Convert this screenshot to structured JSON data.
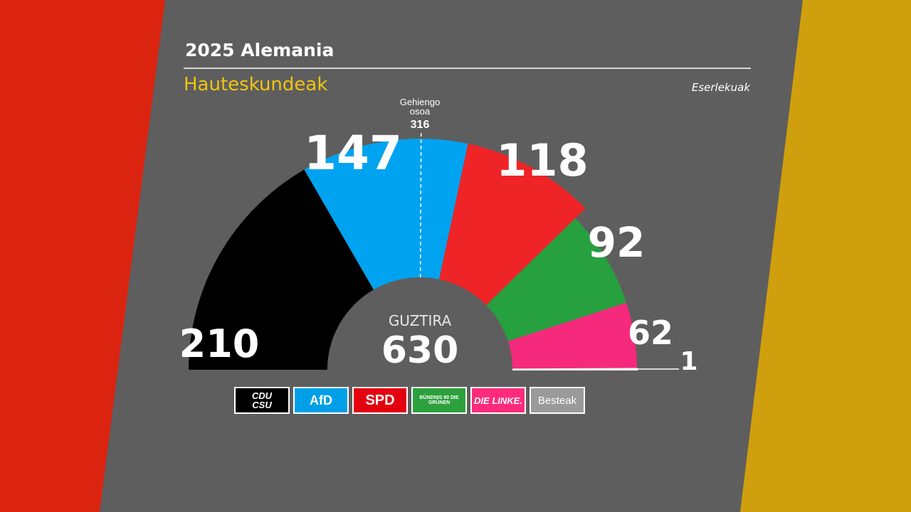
{
  "header": {
    "title": "2025 Alemania",
    "subtitle": "Hauteskundeak",
    "unit": "Eserlekuak"
  },
  "colors": {
    "flag_left": "#db2410",
    "flag_right": "#cf9f0e",
    "background": "#5e5e5e",
    "subtitle": "#f2c40f"
  },
  "chart_data": {
    "type": "pie",
    "variant": "semicircle-parliament",
    "total_label": "GUZTIRA",
    "total": 630,
    "majority": {
      "label_line1": "Gehiengo",
      "label_line2": "osoa",
      "value": 316
    },
    "series": [
      {
        "name": "CDU/CSU",
        "value": 210,
        "color": "#000000"
      },
      {
        "name": "AfD",
        "value": 147,
        "color": "#00a3ef"
      },
      {
        "name": "SPD",
        "value": 118,
        "color": "#ef2426"
      },
      {
        "name": "Grüne",
        "value": 92,
        "color": "#27a03f"
      },
      {
        "name": "Die Linke",
        "value": 62,
        "color": "#f52a7c"
      },
      {
        "name": "Besteak",
        "value": 1,
        "color": "#9a9a9a"
      }
    ]
  },
  "legend": [
    {
      "key": "cdu",
      "text": "CDU\nCSU",
      "icon": "cdu-csu-logo-icon"
    },
    {
      "key": "afd",
      "text": "AfD",
      "icon": "afd-logo-icon"
    },
    {
      "key": "spd",
      "text": "SPD",
      "icon": "spd-logo-icon"
    },
    {
      "key": "gruene",
      "text": "BÜNDNIS 90 DIE GRÜNEN",
      "icon": "gruene-logo-icon"
    },
    {
      "key": "linke",
      "text": "DIE LINKE.",
      "icon": "die-linke-logo-icon"
    },
    {
      "key": "besteak",
      "text": "Besteak",
      "icon": "besteak-box-icon"
    }
  ]
}
